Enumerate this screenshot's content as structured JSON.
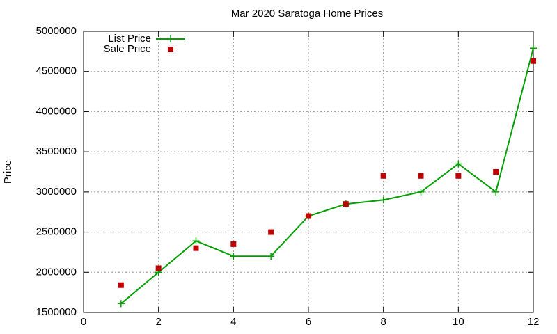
{
  "chart_data": {
    "type": "line",
    "title": "Mar 2020 Saratoga Home Prices",
    "y_label": "Price",
    "x": [
      1,
      2,
      3,
      4,
      5,
      6,
      7,
      8,
      9,
      10,
      11,
      12
    ],
    "series": [
      {
        "name": "List Price",
        "color": "#00a000",
        "style": "linespoints",
        "marker": "plus",
        "values": [
          1610000,
          2000000,
          2390000,
          2200000,
          2200000,
          2700000,
          2850000,
          2900000,
          3000000,
          3350000,
          3000000,
          4790000
        ]
      },
      {
        "name": "Sale Price",
        "color": "#c00000",
        "style": "points",
        "marker": "square",
        "values": [
          1840000,
          2050000,
          2300000,
          2350000,
          2500000,
          2700000,
          2850000,
          3200000,
          3200000,
          3200000,
          3250000,
          4630000
        ]
      }
    ],
    "xlim": [
      0,
      12
    ],
    "xticks": [
      0,
      2,
      4,
      6,
      8,
      10,
      12
    ],
    "ylim": [
      1500000,
      5000000
    ],
    "yticks": [
      1500000,
      2000000,
      2500000,
      3000000,
      3500000,
      4000000,
      4500000,
      5000000
    ],
    "grid": true,
    "legend": "top-left"
  }
}
